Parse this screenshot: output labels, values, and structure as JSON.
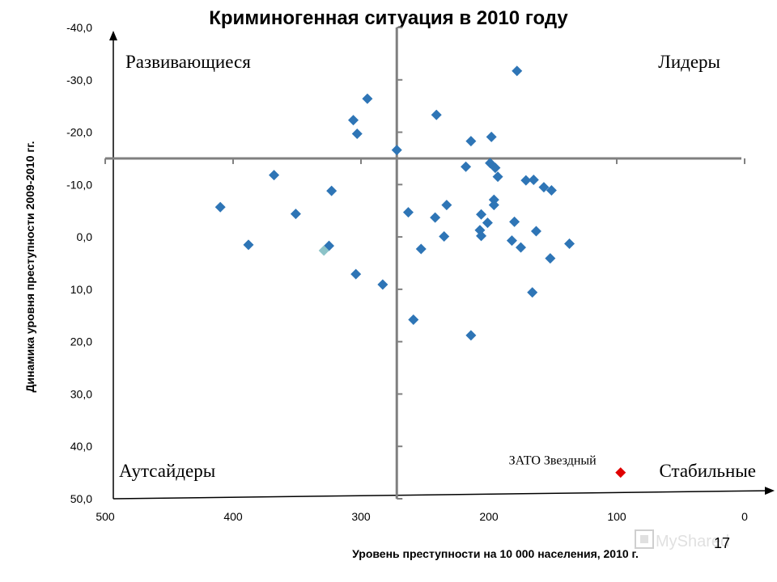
{
  "chart_data": {
    "type": "scatter",
    "title": "Криминогенная ситуация  в 2010 году",
    "xlabel": "Уровень преступности на 10 000 населения, 2010 г.",
    "ylabel": "Динамика уровня преступности 2009-2010 гг.",
    "x_reversed": true,
    "y_reversed": true,
    "xlim": [
      0,
      500
    ],
    "ylim": [
      -40,
      50
    ],
    "x_ticks": [
      "500",
      "400",
      "300",
      "200",
      "100",
      "0"
    ],
    "y_ticks": [
      "-40,0",
      "-30,0",
      "-20,0",
      "-10,0",
      "0,0",
      "10,0",
      "20,0",
      "30,0",
      "40,0",
      "50,0"
    ],
    "crosshair": {
      "x": 272,
      "y": -15
    },
    "quadrant_labels": {
      "top_left": "Развивающиеся",
      "top_right": "Лидеры",
      "bottom_left": "Аутсайдеры",
      "bottom_right": "Стабильные"
    },
    "colors": {
      "points": "#2E75B6",
      "highlight": "#E00000",
      "light_point": "#8CC3C8",
      "axes": "#808080"
    },
    "points": [
      [
        178,
        -31.7
      ],
      [
        295,
        -26.4
      ],
      [
        241,
        -23.3
      ],
      [
        306,
        -22.3
      ],
      [
        303,
        -19.7
      ],
      [
        198,
        -19.1
      ],
      [
        214,
        -18.3
      ],
      [
        272,
        -16.6
      ],
      [
        199,
        -14.1
      ],
      [
        218,
        -13.4
      ],
      [
        195,
        -13.2
      ],
      [
        193,
        -11.5
      ],
      [
        368,
        -11.8
      ],
      [
        171,
        -10.8
      ],
      [
        165,
        -10.9
      ],
      [
        157,
        -9.5
      ],
      [
        151,
        -8.9
      ],
      [
        323,
        -8.8
      ],
      [
        196,
        -7.1
      ],
      [
        196,
        -6.1
      ],
      [
        233,
        -6.1
      ],
      [
        410,
        -5.7
      ],
      [
        263,
        -4.7
      ],
      [
        351,
        -4.4
      ],
      [
        206,
        -4.3
      ],
      [
        242,
        -3.7
      ],
      [
        180,
        -2.9
      ],
      [
        201,
        -2.7
      ],
      [
        207,
        -1.3
      ],
      [
        163,
        -1.1
      ],
      [
        206,
        -0.2
      ],
      [
        235,
        -0.1
      ],
      [
        182,
        0.7
      ],
      [
        388,
        1.5
      ],
      [
        325,
        1.7
      ],
      [
        137,
        1.3
      ],
      [
        175,
        2.0
      ],
      [
        253,
        2.3
      ],
      [
        152,
        4.1
      ],
      [
        304,
        7.1
      ],
      [
        283,
        9.1
      ],
      [
        166,
        10.6
      ],
      [
        259,
        15.8
      ],
      [
        214,
        18.8
      ]
    ],
    "light_points": [
      [
        329,
        2.6
      ]
    ],
    "highlight_points": [
      {
        "x": 97,
        "y": 45.0,
        "label": "ЗАТО Звездный"
      }
    ]
  },
  "slide_number": "17",
  "watermark": "MyShared"
}
